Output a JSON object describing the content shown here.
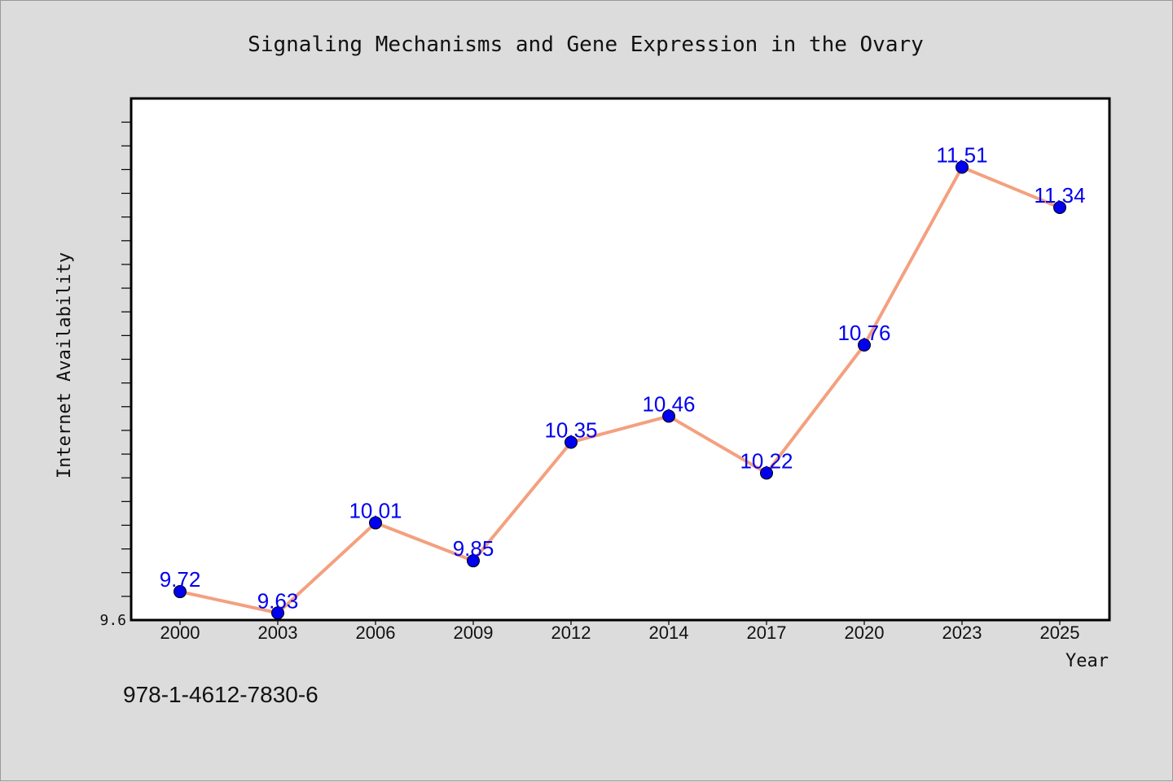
{
  "chart_data": {
    "type": "line",
    "title": "Signaling Mechanisms and Gene Expression in the Ovary",
    "xlabel": "Year",
    "ylabel": "Internet Availability",
    "categories": [
      "2000",
      "2003",
      "2006",
      "2009",
      "2012",
      "2014",
      "2017",
      "2020",
      "2023",
      "2025"
    ],
    "series": [
      {
        "values": [
          9.72,
          9.63,
          10.01,
          9.85,
          10.35,
          10.46,
          10.22,
          10.76,
          11.51,
          11.34
        ],
        "line_color": "#f4a07f",
        "marker_color": "#0000ee",
        "label_color": "#0000ee"
      }
    ],
    "ylim": [
      9.6,
      11.8
    ],
    "y_tick_labels": [
      "9.6"
    ],
    "grid": false,
    "legend": "none",
    "data_labels": true
  },
  "footer": {
    "isbn": "978-1-4612-7830-6"
  },
  "colors": {
    "background": "#dcdcdc",
    "plot_background": "#ffffff",
    "axis": "#000000"
  }
}
